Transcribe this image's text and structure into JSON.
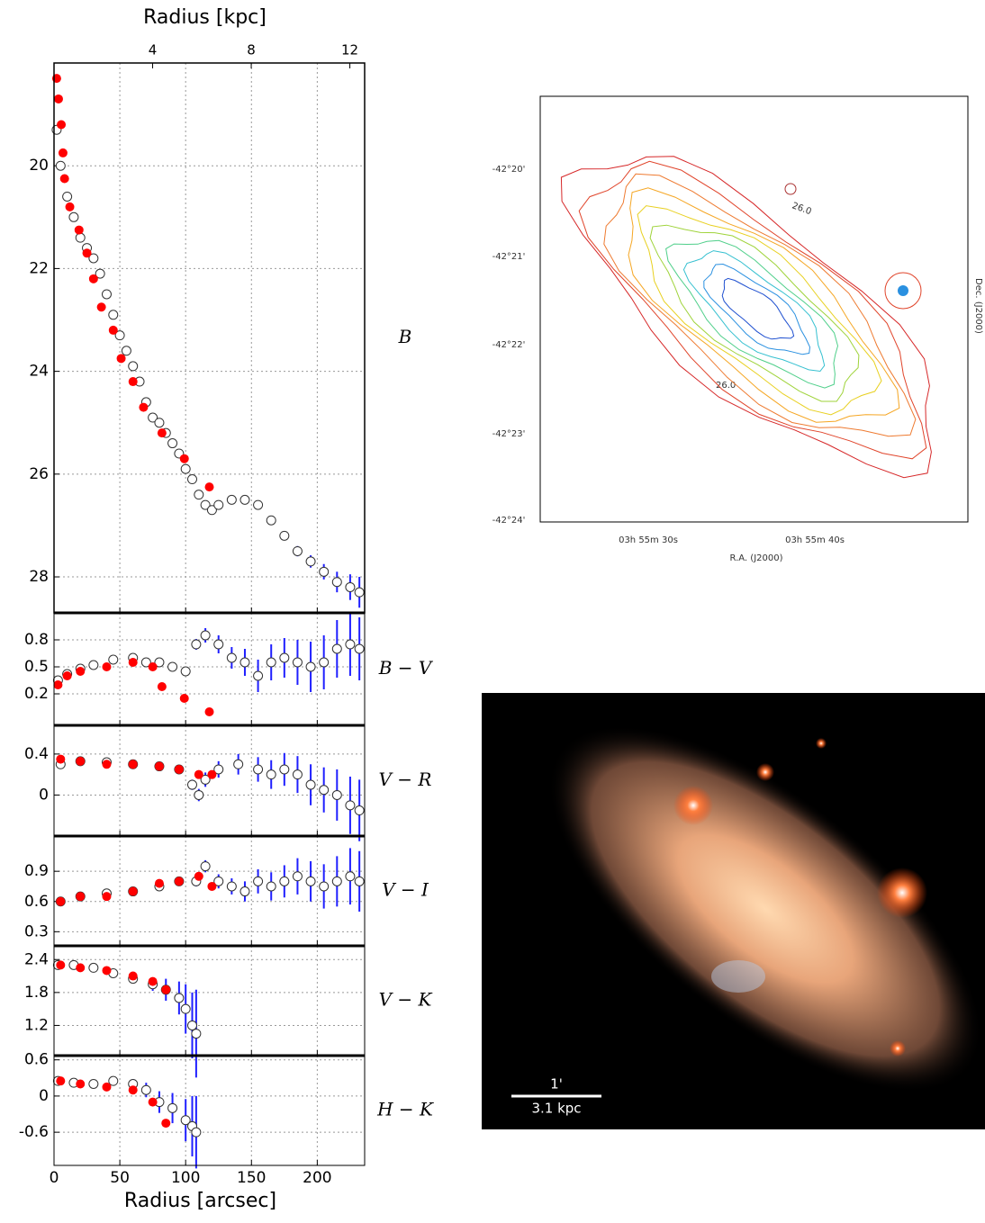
{
  "chart_data": [
    {
      "type": "scatter",
      "ylabel": "B",
      "x2label": "Radius [kpc]",
      "x2lim": [
        0,
        12.6
      ],
      "x2ticks": [
        4,
        8,
        12
      ],
      "xlim": [
        0,
        236
      ],
      "xticks": [
        0,
        50,
        100,
        150,
        200
      ],
      "ylim": [
        28.7,
        18.0
      ],
      "yticks": [
        20,
        22,
        24,
        26,
        28
      ],
      "grid": true,
      "series": [
        {
          "color": "#ffffff",
          "error_color": "#1f1fff",
          "x": [
            2,
            5,
            10,
            15,
            20,
            25,
            30,
            35,
            40,
            45,
            50,
            55,
            60,
            65,
            70,
            75,
            80,
            85,
            90,
            95,
            100,
            105,
            110,
            115,
            120,
            125,
            135,
            145,
            155,
            165,
            175,
            185,
            195,
            205,
            215,
            225,
            232
          ],
          "values": [
            19.3,
            20.0,
            20.6,
            21.0,
            21.4,
            21.6,
            21.8,
            22.1,
            22.5,
            22.9,
            23.3,
            23.6,
            23.9,
            24.2,
            24.6,
            24.9,
            25.0,
            25.2,
            25.4,
            25.6,
            25.9,
            26.1,
            26.4,
            26.6,
            26.7,
            26.6,
            26.5,
            26.5,
            26.6,
            26.9,
            27.2,
            27.5,
            27.7,
            27.9,
            28.1,
            28.2,
            28.3
          ],
          "errors": [
            0.02,
            0.02,
            0.02,
            0.02,
            0.02,
            0.02,
            0.02,
            0.02,
            0.02,
            0.02,
            0.02,
            0.02,
            0.02,
            0.02,
            0.02,
            0.02,
            0.03,
            0.03,
            0.03,
            0.03,
            0.03,
            0.03,
            0.04,
            0.04,
            0.04,
            0.05,
            0.05,
            0.05,
            0.06,
            0.07,
            0.08,
            0.1,
            0.12,
            0.15,
            0.2,
            0.25,
            0.3
          ]
        },
        {
          "color": "#ff0000",
          "x": [
            2,
            3.4,
            5.5,
            6.8,
            8,
            12,
            19,
            25,
            30,
            36,
            45,
            51,
            60,
            68,
            82,
            99,
            118
          ],
          "values": [
            18.3,
            18.7,
            19.2,
            19.75,
            20.25,
            20.8,
            21.25,
            21.7,
            22.2,
            22.75,
            23.2,
            23.75,
            24.2,
            24.7,
            25.2,
            25.7,
            26.25
          ]
        }
      ]
    },
    {
      "type": "scatter",
      "ylabel": "B − V",
      "xlim": [
        0,
        236
      ],
      "xticks": [
        0,
        50,
        100,
        150,
        200
      ],
      "ylim": [
        -0.15,
        1.1
      ],
      "yticks": [
        0.2,
        0.5,
        0.8
      ],
      "grid": true,
      "series": [
        {
          "color": "#ffffff",
          "error_color": "#1f1fff",
          "x": [
            3,
            10,
            20,
            30,
            45,
            60,
            70,
            80,
            90,
            100,
            108,
            115,
            125,
            135,
            145,
            155,
            165,
            175,
            185,
            195,
            205,
            215,
            225,
            232
          ],
          "values": [
            0.35,
            0.42,
            0.48,
            0.52,
            0.58,
            0.6,
            0.55,
            0.55,
            0.5,
            0.45,
            0.75,
            0.85,
            0.75,
            0.6,
            0.55,
            0.4,
            0.55,
            0.6,
            0.55,
            0.5,
            0.55,
            0.7,
            0.75,
            0.7
          ],
          "errors": [
            0.05,
            0.03,
            0.03,
            0.03,
            0.03,
            0.03,
            0.04,
            0.04,
            0.05,
            0.05,
            0.06,
            0.08,
            0.1,
            0.12,
            0.15,
            0.18,
            0.2,
            0.22,
            0.25,
            0.28,
            0.3,
            0.32,
            0.35,
            0.35
          ]
        },
        {
          "color": "#ff0000",
          "x": [
            3,
            10,
            20,
            40,
            60,
            75,
            82,
            99,
            118
          ],
          "values": [
            0.3,
            0.4,
            0.45,
            0.5,
            0.55,
            0.5,
            0.28,
            0.15,
            0.0
          ]
        }
      ]
    },
    {
      "type": "scatter",
      "ylabel": "V − R",
      "xlim": [
        0,
        236
      ],
      "xticks": [
        0,
        50,
        100,
        150,
        200
      ],
      "ylim": [
        -0.4,
        0.68
      ],
      "yticks": [
        0.0,
        0.4
      ],
      "grid": true,
      "series": [
        {
          "color": "#ffffff",
          "error_color": "#1f1fff",
          "x": [
            5,
            20,
            40,
            60,
            80,
            95,
            105,
            110,
            115,
            125,
            140,
            155,
            165,
            175,
            185,
            195,
            205,
            215,
            225,
            232
          ],
          "values": [
            0.3,
            0.33,
            0.32,
            0.3,
            0.28,
            0.25,
            0.1,
            0.0,
            0.15,
            0.25,
            0.3,
            0.25,
            0.2,
            0.25,
            0.2,
            0.1,
            0.05,
            0.0,
            -0.1,
            -0.15
          ],
          "errors": [
            0.03,
            0.02,
            0.02,
            0.02,
            0.03,
            0.04,
            0.05,
            0.06,
            0.07,
            0.08,
            0.1,
            0.12,
            0.14,
            0.16,
            0.18,
            0.2,
            0.22,
            0.25,
            0.28,
            0.3
          ]
        },
        {
          "color": "#ff0000",
          "x": [
            5,
            20,
            40,
            60,
            80,
            95,
            110,
            120
          ],
          "values": [
            0.35,
            0.33,
            0.3,
            0.3,
            0.28,
            0.25,
            0.2,
            0.2
          ]
        }
      ]
    },
    {
      "type": "scatter",
      "ylabel": "V − I",
      "xlim": [
        0,
        236
      ],
      "xticks": [
        0,
        50,
        100,
        150,
        200
      ],
      "ylim": [
        0.16,
        1.25
      ],
      "yticks": [
        0.3,
        0.6,
        0.9
      ],
      "grid": true,
      "series": [
        {
          "color": "#ffffff",
          "error_color": "#1f1fff",
          "x": [
            5,
            20,
            40,
            60,
            80,
            95,
            108,
            115,
            125,
            135,
            145,
            155,
            165,
            175,
            185,
            195,
            205,
            215,
            225,
            232
          ],
          "values": [
            0.6,
            0.65,
            0.68,
            0.7,
            0.75,
            0.8,
            0.8,
            0.95,
            0.8,
            0.75,
            0.7,
            0.8,
            0.75,
            0.8,
            0.85,
            0.8,
            0.75,
            0.8,
            0.85,
            0.8
          ],
          "errors": [
            0.04,
            0.02,
            0.02,
            0.02,
            0.03,
            0.04,
            0.05,
            0.06,
            0.07,
            0.08,
            0.1,
            0.12,
            0.14,
            0.16,
            0.18,
            0.2,
            0.22,
            0.25,
            0.28,
            0.3
          ]
        },
        {
          "color": "#ff0000",
          "x": [
            5,
            20,
            40,
            60,
            80,
            95,
            110,
            120
          ],
          "values": [
            0.6,
            0.65,
            0.65,
            0.7,
            0.78,
            0.8,
            0.85,
            0.75
          ]
        }
      ]
    },
    {
      "type": "scatter",
      "ylabel": "V − K",
      "xlim": [
        0,
        236
      ],
      "xticks": [
        0,
        50,
        100,
        150,
        200
      ],
      "ylim": [
        0.65,
        2.65
      ],
      "yticks": [
        1.2,
        1.8,
        2.4
      ],
      "grid": true,
      "series": [
        {
          "color": "#ffffff",
          "error_color": "#1f1fff",
          "x": [
            3,
            15,
            30,
            45,
            60,
            75,
            85,
            95,
            100,
            105,
            108
          ],
          "values": [
            2.3,
            2.3,
            2.25,
            2.15,
            2.05,
            1.95,
            1.85,
            1.7,
            1.5,
            1.2,
            1.05
          ],
          "errors": [
            0.04,
            0.03,
            0.03,
            0.05,
            0.08,
            0.12,
            0.2,
            0.3,
            0.45,
            0.6,
            0.8
          ]
        },
        {
          "color": "#ff0000",
          "x": [
            5,
            20,
            40,
            60,
            75,
            85
          ],
          "values": [
            2.3,
            2.25,
            2.2,
            2.1,
            2.0,
            1.85
          ]
        }
      ]
    },
    {
      "type": "scatter",
      "ylabel": "H − K",
      "xlabel": "Radius [arcsec]",
      "xlim": [
        0,
        236
      ],
      "xticks": [
        0,
        50,
        100,
        150,
        200
      ],
      "ylim": [
        -1.15,
        0.67
      ],
      "yticks": [
        -0.6,
        0.0,
        0.6
      ],
      "grid": true,
      "series": [
        {
          "color": "#ffffff",
          "error_color": "#1f1fff",
          "x": [
            3,
            15,
            30,
            45,
            60,
            70,
            80,
            90,
            100,
            105,
            108
          ],
          "values": [
            0.25,
            0.22,
            0.2,
            0.25,
            0.2,
            0.1,
            -0.1,
            -0.2,
            -0.4,
            -0.5,
            -0.6
          ],
          "errors": [
            0.05,
            0.03,
            0.03,
            0.05,
            0.08,
            0.12,
            0.18,
            0.25,
            0.35,
            0.5,
            0.6
          ]
        },
        {
          "color": "#ff0000",
          "x": [
            5,
            20,
            40,
            60,
            75,
            85
          ],
          "values": [
            0.25,
            0.2,
            0.15,
            0.1,
            -0.1,
            -0.45
          ]
        }
      ]
    }
  ],
  "contour_map": {
    "yticks": [
      "-42°20'",
      "-42°21'",
      "-42°22'",
      "-42°23'",
      "-42°24'"
    ],
    "xticks": [
      "03h 55m 30s",
      "03h 55m 40s"
    ],
    "xlabel": "R.A. (J2000)",
    "ylabel": "Dec. (J2000)",
    "contour_labels": [
      "26.0",
      "26.0"
    ]
  },
  "image": {
    "scale_angle": "1'",
    "scale_length": "3.1 kpc"
  }
}
